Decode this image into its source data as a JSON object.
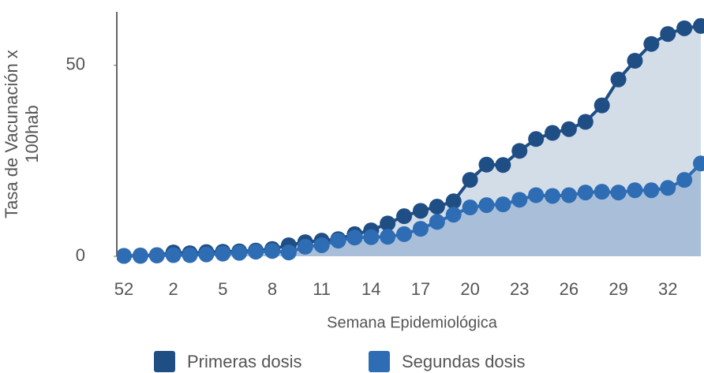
{
  "chart_data": {
    "type": "line",
    "y_label": "Tasa de Vacunación x 100hab",
    "x_label": "Semana Epidemiológica",
    "categories": [
      "52",
      null,
      null,
      "2",
      null,
      null,
      "5",
      null,
      null,
      "8",
      null,
      null,
      "11",
      null,
      null,
      "14",
      null,
      null,
      "17",
      null,
      null,
      "20",
      null,
      null,
      "23",
      null,
      null,
      "26",
      null,
      null,
      "29",
      null,
      null,
      "32",
      null,
      null
    ],
    "series": [
      {
        "name": "Primeras dosis",
        "color": "#1f4e85",
        "fill": "#d3dde8",
        "values": [
          0.1,
          0.2,
          0.3,
          1,
          0.8,
          1.1,
          1.2,
          1.3,
          1.5,
          1.9,
          2.9,
          3.7,
          4.1,
          4.5,
          5.8,
          6.8,
          8.6,
          10.5,
          11.9,
          13,
          14.4,
          20,
          24,
          23.9,
          27.6,
          30.7,
          32.3,
          33.3,
          35.2,
          39.5,
          46.3,
          51.2,
          55.6,
          58.2,
          59.7,
          60.3
        ]
      },
      {
        "name": "Segundas dosis",
        "color": "#2e6db4",
        "fill": "#a9bfd9",
        "values": [
          0.1,
          0.1,
          0.2,
          0.3,
          0.3,
          0.5,
          0.7,
          0.9,
          1.2,
          1.4,
          1,
          2.5,
          2.9,
          4.1,
          4.9,
          5,
          5.1,
          5.8,
          7.2,
          9,
          10.9,
          12.8,
          13.4,
          13.6,
          14.8,
          16,
          15.8,
          16,
          16.7,
          16.9,
          16.7,
          17.3,
          17.3,
          17.9,
          20,
          24.3
        ]
      }
    ],
    "ylim": [
      0,
      64
    ],
    "yticks": [
      0,
      50
    ],
    "grid": false
  }
}
